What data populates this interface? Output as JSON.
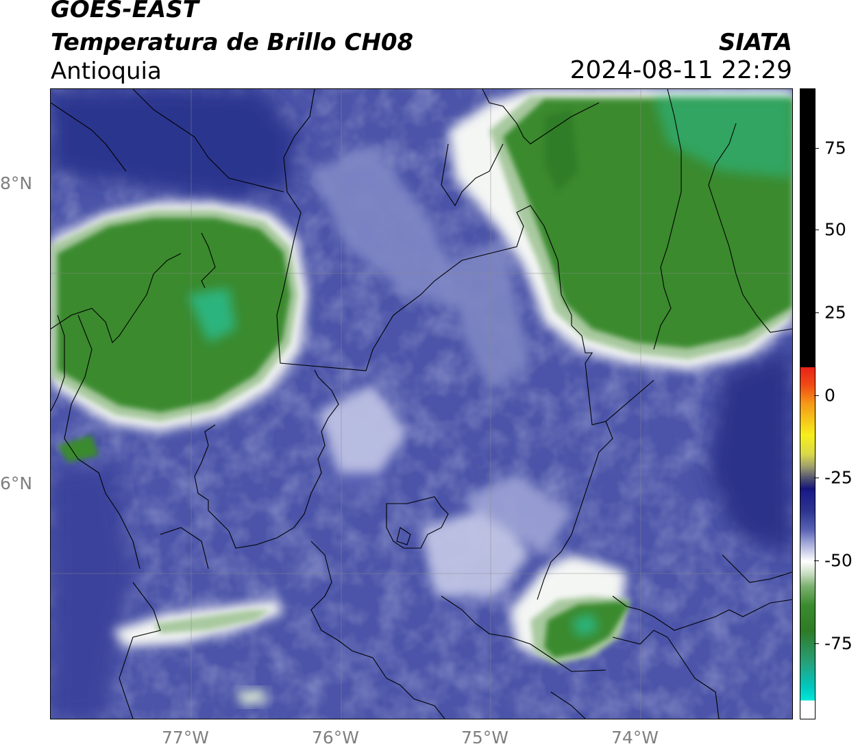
{
  "header": {
    "satellite": "GOES-EAST",
    "product": "Temperatura de Brillo CH08",
    "region": "Antioquia",
    "organization": "SIATA",
    "timestamp": "2024-08-11 22:29"
  },
  "map": {
    "lat_labels": [
      "8°N",
      "6°N"
    ],
    "lon_labels": [
      "77°W",
      "76°W",
      "75°W",
      "74°W"
    ],
    "colors": {
      "cold_green": "#3a8a2e",
      "cyan_core": "#27c6a0",
      "white_edge": "#f4f6f4",
      "warm_blue": "#4b54a8",
      "light_blue": "#8a92cc",
      "dark_blue": "#252e85",
      "border_line": "#000000"
    }
  },
  "colorbar": {
    "tick_labels": [
      "75",
      "50",
      "25",
      "0",
      "-25",
      "-50",
      "-75"
    ],
    "colors": {
      "black": "#000000",
      "red": "#e8231a",
      "orange": "#f59a18",
      "yellow": "#f6ef1c",
      "navy": "#14147a",
      "white": "#ffffff",
      "green": "#3a8a2e",
      "cyan": "#00e6d8"
    }
  }
}
